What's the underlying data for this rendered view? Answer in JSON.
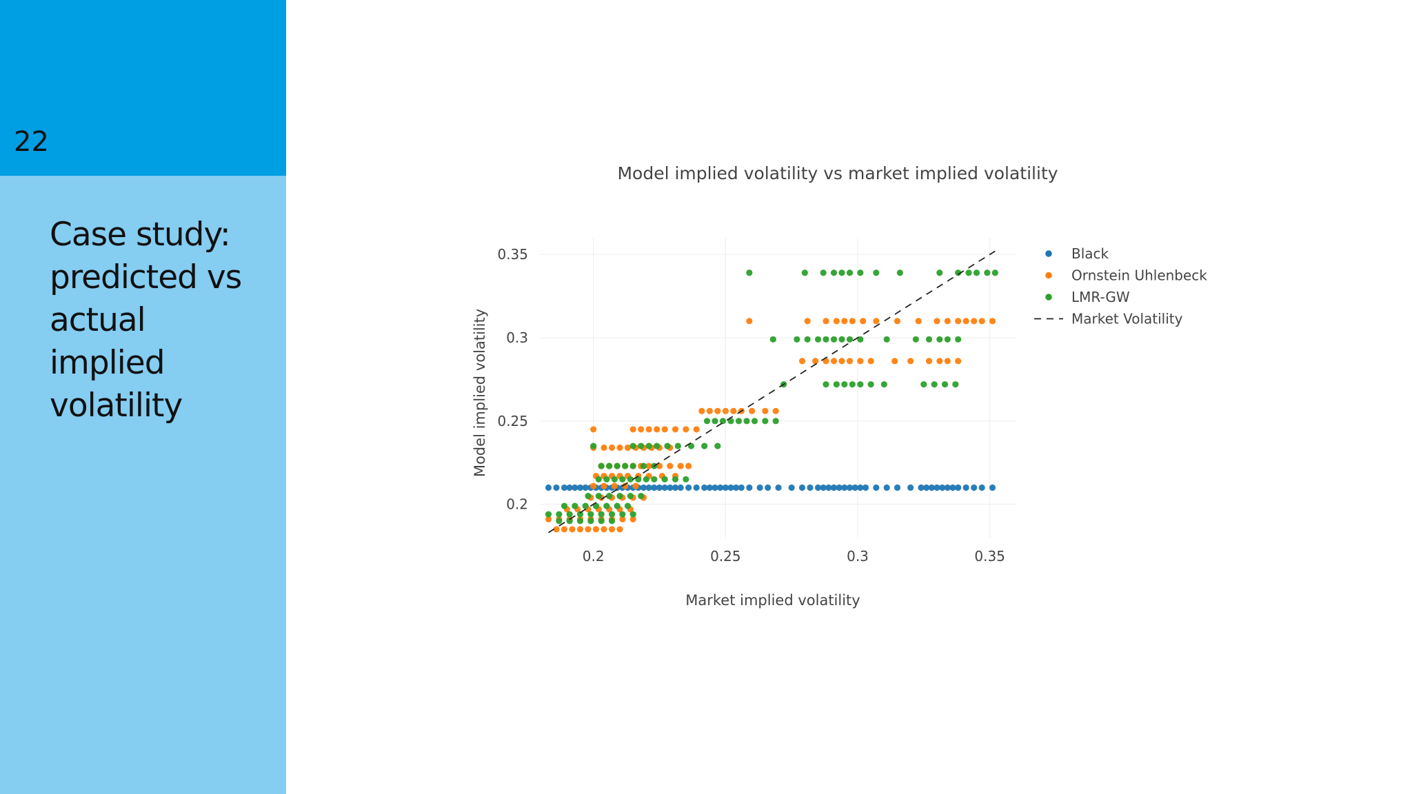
{
  "slide": {
    "number": "22",
    "title_lines": [
      "Case study:",
      "predicted vs",
      "actual",
      "implied",
      "volatility"
    ]
  },
  "chart_data": {
    "type": "scatter",
    "title": "Model implied volatility vs market implied volatility",
    "xlabel": "Market implied volatility",
    "ylabel": "Model implied volatility",
    "xlim": [
      0.18,
      0.36
    ],
    "ylim": [
      0.18,
      0.36
    ],
    "xticks": [
      0.2,
      0.25,
      0.3,
      0.35
    ],
    "yticks": [
      0.2,
      0.25,
      0.3,
      0.35
    ],
    "xtick_labels": [
      "0.2",
      "0.25",
      "0.3",
      "0.35"
    ],
    "ytick_labels": [
      "0.2",
      "0.25",
      "0.3",
      "0.35"
    ],
    "grid": true,
    "legend_placement": "top-right outside",
    "series": [
      {
        "name": "Black",
        "color": "#1f77b4",
        "points": [
          [
            0.183,
            0.21
          ],
          [
            0.186,
            0.21
          ],
          [
            0.189,
            0.21
          ],
          [
            0.191,
            0.21
          ],
          [
            0.193,
            0.21
          ],
          [
            0.195,
            0.21
          ],
          [
            0.197,
            0.21
          ],
          [
            0.199,
            0.21
          ],
          [
            0.201,
            0.21
          ],
          [
            0.203,
            0.21
          ],
          [
            0.205,
            0.21
          ],
          [
            0.207,
            0.21
          ],
          [
            0.209,
            0.21
          ],
          [
            0.211,
            0.21
          ],
          [
            0.213,
            0.21
          ],
          [
            0.215,
            0.21
          ],
          [
            0.217,
            0.21
          ],
          [
            0.219,
            0.21
          ],
          [
            0.221,
            0.21
          ],
          [
            0.223,
            0.21
          ],
          [
            0.225,
            0.21
          ],
          [
            0.227,
            0.21
          ],
          [
            0.229,
            0.21
          ],
          [
            0.231,
            0.21
          ],
          [
            0.233,
            0.21
          ],
          [
            0.236,
            0.21
          ],
          [
            0.239,
            0.21
          ],
          [
            0.242,
            0.21
          ],
          [
            0.244,
            0.21
          ],
          [
            0.246,
            0.21
          ],
          [
            0.248,
            0.21
          ],
          [
            0.25,
            0.21
          ],
          [
            0.252,
            0.21
          ],
          [
            0.254,
            0.21
          ],
          [
            0.256,
            0.21
          ],
          [
            0.259,
            0.21
          ],
          [
            0.263,
            0.21
          ],
          [
            0.266,
            0.21
          ],
          [
            0.27,
            0.21
          ],
          [
            0.275,
            0.21
          ],
          [
            0.279,
            0.21
          ],
          [
            0.282,
            0.21
          ],
          [
            0.285,
            0.21
          ],
          [
            0.287,
            0.21
          ],
          [
            0.289,
            0.21
          ],
          [
            0.291,
            0.21
          ],
          [
            0.293,
            0.21
          ],
          [
            0.295,
            0.21
          ],
          [
            0.297,
            0.21
          ],
          [
            0.299,
            0.21
          ],
          [
            0.301,
            0.21
          ],
          [
            0.303,
            0.21
          ],
          [
            0.307,
            0.21
          ],
          [
            0.311,
            0.21
          ],
          [
            0.315,
            0.21
          ],
          [
            0.32,
            0.21
          ],
          [
            0.324,
            0.21
          ],
          [
            0.326,
            0.21
          ],
          [
            0.328,
            0.21
          ],
          [
            0.33,
            0.21
          ],
          [
            0.332,
            0.21
          ],
          [
            0.334,
            0.21
          ],
          [
            0.336,
            0.21
          ],
          [
            0.338,
            0.21
          ],
          [
            0.341,
            0.21
          ],
          [
            0.344,
            0.21
          ],
          [
            0.347,
            0.21
          ],
          [
            0.351,
            0.21
          ]
        ]
      },
      {
        "name": "Ornstein Uhlenbeck",
        "color": "#ff7f0e",
        "points": [
          [
            0.183,
            0.191
          ],
          [
            0.187,
            0.191
          ],
          [
            0.191,
            0.191
          ],
          [
            0.195,
            0.191
          ],
          [
            0.199,
            0.191
          ],
          [
            0.203,
            0.191
          ],
          [
            0.207,
            0.191
          ],
          [
            0.211,
            0.191
          ],
          [
            0.215,
            0.191
          ],
          [
            0.186,
            0.185
          ],
          [
            0.189,
            0.185
          ],
          [
            0.192,
            0.185
          ],
          [
            0.195,
            0.185
          ],
          [
            0.198,
            0.185
          ],
          [
            0.201,
            0.185
          ],
          [
            0.204,
            0.185
          ],
          [
            0.207,
            0.185
          ],
          [
            0.21,
            0.185
          ],
          [
            0.19,
            0.197
          ],
          [
            0.194,
            0.197
          ],
          [
            0.198,
            0.197
          ],
          [
            0.202,
            0.197
          ],
          [
            0.206,
            0.197
          ],
          [
            0.21,
            0.197
          ],
          [
            0.214,
            0.197
          ],
          [
            0.199,
            0.204
          ],
          [
            0.203,
            0.204
          ],
          [
            0.207,
            0.204
          ],
          [
            0.211,
            0.204
          ],
          [
            0.215,
            0.204
          ],
          [
            0.219,
            0.204
          ],
          [
            0.2,
            0.211
          ],
          [
            0.204,
            0.211
          ],
          [
            0.208,
            0.211
          ],
          [
            0.212,
            0.211
          ],
          [
            0.216,
            0.211
          ],
          [
            0.201,
            0.217
          ],
          [
            0.204,
            0.217
          ],
          [
            0.207,
            0.217
          ],
          [
            0.21,
            0.217
          ],
          [
            0.213,
            0.217
          ],
          [
            0.217,
            0.217
          ],
          [
            0.221,
            0.217
          ],
          [
            0.226,
            0.217
          ],
          [
            0.231,
            0.217
          ],
          [
            0.203,
            0.223
          ],
          [
            0.206,
            0.223
          ],
          [
            0.209,
            0.223
          ],
          [
            0.212,
            0.223
          ],
          [
            0.215,
            0.223
          ],
          [
            0.218,
            0.223
          ],
          [
            0.221,
            0.223
          ],
          [
            0.225,
            0.223
          ],
          [
            0.229,
            0.223
          ],
          [
            0.233,
            0.223
          ],
          [
            0.236,
            0.223
          ],
          [
            0.2,
            0.234
          ],
          [
            0.204,
            0.234
          ],
          [
            0.207,
            0.234
          ],
          [
            0.21,
            0.234
          ],
          [
            0.213,
            0.234
          ],
          [
            0.216,
            0.234
          ],
          [
            0.219,
            0.234
          ],
          [
            0.222,
            0.234
          ],
          [
            0.225,
            0.234
          ],
          [
            0.229,
            0.234
          ],
          [
            0.2,
            0.245
          ],
          [
            0.215,
            0.245
          ],
          [
            0.218,
            0.245
          ],
          [
            0.221,
            0.245
          ],
          [
            0.224,
            0.245
          ],
          [
            0.227,
            0.245
          ],
          [
            0.231,
            0.245
          ],
          [
            0.235,
            0.245
          ],
          [
            0.239,
            0.245
          ],
          [
            0.241,
            0.256
          ],
          [
            0.244,
            0.256
          ],
          [
            0.247,
            0.256
          ],
          [
            0.25,
            0.256
          ],
          [
            0.253,
            0.256
          ],
          [
            0.256,
            0.256
          ],
          [
            0.26,
            0.256
          ],
          [
            0.265,
            0.256
          ],
          [
            0.269,
            0.256
          ],
          [
            0.259,
            0.31
          ],
          [
            0.281,
            0.31
          ],
          [
            0.288,
            0.31
          ],
          [
            0.292,
            0.31
          ],
          [
            0.295,
            0.31
          ],
          [
            0.298,
            0.31
          ],
          [
            0.302,
            0.31
          ],
          [
            0.307,
            0.31
          ],
          [
            0.315,
            0.31
          ],
          [
            0.323,
            0.31
          ],
          [
            0.33,
            0.31
          ],
          [
            0.334,
            0.31
          ],
          [
            0.338,
            0.31
          ],
          [
            0.341,
            0.31
          ],
          [
            0.344,
            0.31
          ],
          [
            0.347,
            0.31
          ],
          [
            0.351,
            0.31
          ],
          [
            0.279,
            0.286
          ],
          [
            0.284,
            0.286
          ],
          [
            0.288,
            0.286
          ],
          [
            0.291,
            0.286
          ],
          [
            0.294,
            0.286
          ],
          [
            0.297,
            0.286
          ],
          [
            0.301,
            0.286
          ],
          [
            0.305,
            0.286
          ],
          [
            0.314,
            0.286
          ],
          [
            0.32,
            0.286
          ],
          [
            0.327,
            0.286
          ],
          [
            0.331,
            0.286
          ],
          [
            0.334,
            0.286
          ],
          [
            0.338,
            0.286
          ]
        ]
      },
      {
        "name": "LMR-GW",
        "color": "#2ca02c",
        "points": [
          [
            0.183,
            0.194
          ],
          [
            0.187,
            0.194
          ],
          [
            0.191,
            0.194
          ],
          [
            0.195,
            0.194
          ],
          [
            0.199,
            0.194
          ],
          [
            0.203,
            0.194
          ],
          [
            0.207,
            0.194
          ],
          [
            0.211,
            0.194
          ],
          [
            0.215,
            0.194
          ],
          [
            0.189,
            0.199
          ],
          [
            0.193,
            0.199
          ],
          [
            0.197,
            0.199
          ],
          [
            0.201,
            0.199
          ],
          [
            0.205,
            0.199
          ],
          [
            0.209,
            0.199
          ],
          [
            0.213,
            0.199
          ],
          [
            0.187,
            0.19
          ],
          [
            0.191,
            0.19
          ],
          [
            0.195,
            0.19
          ],
          [
            0.199,
            0.19
          ],
          [
            0.203,
            0.19
          ],
          [
            0.207,
            0.19
          ],
          [
            0.198,
            0.205
          ],
          [
            0.202,
            0.205
          ],
          [
            0.206,
            0.205
          ],
          [
            0.21,
            0.205
          ],
          [
            0.214,
            0.205
          ],
          [
            0.218,
            0.205
          ],
          [
            0.202,
            0.215
          ],
          [
            0.205,
            0.215
          ],
          [
            0.208,
            0.215
          ],
          [
            0.211,
            0.215
          ],
          [
            0.214,
            0.215
          ],
          [
            0.217,
            0.215
          ],
          [
            0.22,
            0.215
          ],
          [
            0.223,
            0.215
          ],
          [
            0.227,
            0.215
          ],
          [
            0.231,
            0.215
          ],
          [
            0.235,
            0.215
          ],
          [
            0.203,
            0.223
          ],
          [
            0.206,
            0.223
          ],
          [
            0.209,
            0.223
          ],
          [
            0.212,
            0.223
          ],
          [
            0.215,
            0.223
          ],
          [
            0.219,
            0.223
          ],
          [
            0.223,
            0.223
          ],
          [
            0.2,
            0.235
          ],
          [
            0.215,
            0.235
          ],
          [
            0.218,
            0.235
          ],
          [
            0.221,
            0.235
          ],
          [
            0.224,
            0.235
          ],
          [
            0.228,
            0.235
          ],
          [
            0.232,
            0.235
          ],
          [
            0.237,
            0.235
          ],
          [
            0.242,
            0.235
          ],
          [
            0.247,
            0.235
          ],
          [
            0.243,
            0.25
          ],
          [
            0.246,
            0.25
          ],
          [
            0.249,
            0.25
          ],
          [
            0.252,
            0.25
          ],
          [
            0.255,
            0.25
          ],
          [
            0.258,
            0.25
          ],
          [
            0.261,
            0.25
          ],
          [
            0.265,
            0.25
          ],
          [
            0.269,
            0.25
          ],
          [
            0.259,
            0.339
          ],
          [
            0.28,
            0.339
          ],
          [
            0.287,
            0.339
          ],
          [
            0.291,
            0.339
          ],
          [
            0.294,
            0.339
          ],
          [
            0.297,
            0.339
          ],
          [
            0.301,
            0.339
          ],
          [
            0.307,
            0.339
          ],
          [
            0.316,
            0.339
          ],
          [
            0.331,
            0.339
          ],
          [
            0.338,
            0.339
          ],
          [
            0.342,
            0.339
          ],
          [
            0.345,
            0.339
          ],
          [
            0.349,
            0.339
          ],
          [
            0.352,
            0.339
          ],
          [
            0.268,
            0.299
          ],
          [
            0.277,
            0.299
          ],
          [
            0.281,
            0.299
          ],
          [
            0.285,
            0.299
          ],
          [
            0.288,
            0.299
          ],
          [
            0.291,
            0.299
          ],
          [
            0.294,
            0.299
          ],
          [
            0.297,
            0.299
          ],
          [
            0.301,
            0.299
          ],
          [
            0.311,
            0.299
          ],
          [
            0.322,
            0.299
          ],
          [
            0.327,
            0.299
          ],
          [
            0.331,
            0.299
          ],
          [
            0.334,
            0.299
          ],
          [
            0.338,
            0.299
          ],
          [
            0.272,
            0.272
          ],
          [
            0.288,
            0.272
          ],
          [
            0.292,
            0.272
          ],
          [
            0.295,
            0.272
          ],
          [
            0.298,
            0.272
          ],
          [
            0.301,
            0.272
          ],
          [
            0.305,
            0.272
          ],
          [
            0.31,
            0.272
          ],
          [
            0.325,
            0.272
          ],
          [
            0.329,
            0.272
          ],
          [
            0.333,
            0.272
          ],
          [
            0.337,
            0.272
          ]
        ]
      },
      {
        "name": "Market Volatility",
        "color": "#222222",
        "style": "dashed-line",
        "x": [
          0.183,
          0.352
        ],
        "y": [
          0.183,
          0.352
        ]
      }
    ]
  }
}
